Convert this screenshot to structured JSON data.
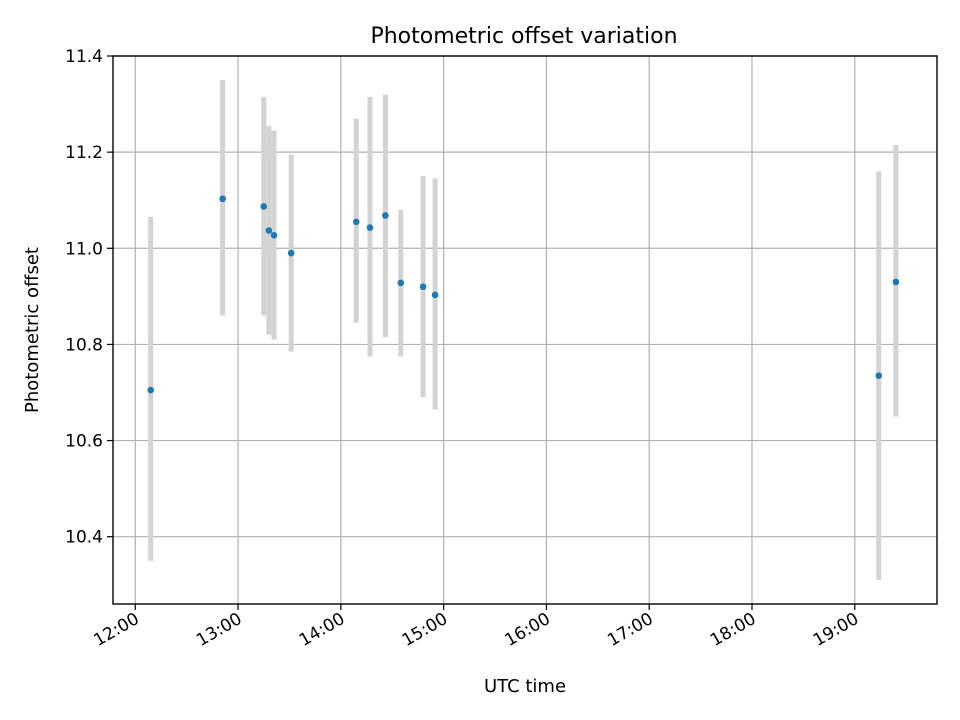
{
  "chart_data": {
    "type": "scatter",
    "title": "Photometric offset variation",
    "xlabel": "UTC time",
    "ylabel": "Photometric offset",
    "x_ticks": [
      "12:00",
      "13:00",
      "14:00",
      "15:00",
      "16:00",
      "17:00",
      "18:00",
      "19:00"
    ],
    "y_ticks": [
      "10.4",
      "10.6",
      "10.8",
      "11.0",
      "11.2",
      "11.4"
    ],
    "xlim": [
      "11:47",
      "19:48"
    ],
    "ylim": [
      10.26,
      11.4
    ],
    "grid": true,
    "colors": {
      "point": "#1f77b4",
      "errorbar": "#d3d3d3"
    },
    "series": [
      {
        "points": [
          {
            "x": "12:09",
            "y": 10.705,
            "ymin": 10.35,
            "ymax": 11.065
          },
          {
            "x": "12:51",
            "y": 11.103,
            "ymin": 10.86,
            "ymax": 11.35
          },
          {
            "x": "13:15",
            "y": 11.087,
            "ymin": 10.86,
            "ymax": 11.315
          },
          {
            "x": "13:18",
            "y": 11.037,
            "ymin": 10.82,
            "ymax": 11.255
          },
          {
            "x": "13:21",
            "y": 11.027,
            "ymin": 10.81,
            "ymax": 11.245
          },
          {
            "x": "13:31",
            "y": 10.99,
            "ymin": 10.785,
            "ymax": 11.195
          },
          {
            "x": "14:09",
            "y": 11.055,
            "ymin": 10.845,
            "ymax": 11.27
          },
          {
            "x": "14:17",
            "y": 11.043,
            "ymin": 10.775,
            "ymax": 11.315
          },
          {
            "x": "14:26",
            "y": 11.068,
            "ymin": 10.815,
            "ymax": 11.32
          },
          {
            "x": "14:35",
            "y": 10.928,
            "ymin": 10.775,
            "ymax": 11.08
          },
          {
            "x": "14:48",
            "y": 10.92,
            "ymin": 10.69,
            "ymax": 11.15
          },
          {
            "x": "14:55",
            "y": 10.903,
            "ymin": 10.665,
            "ymax": 11.145
          },
          {
            "x": "19:14",
            "y": 10.735,
            "ymin": 10.31,
            "ymax": 11.16
          },
          {
            "x": "19:24",
            "y": 10.93,
            "ymin": 10.65,
            "ymax": 11.215
          }
        ]
      }
    ]
  }
}
